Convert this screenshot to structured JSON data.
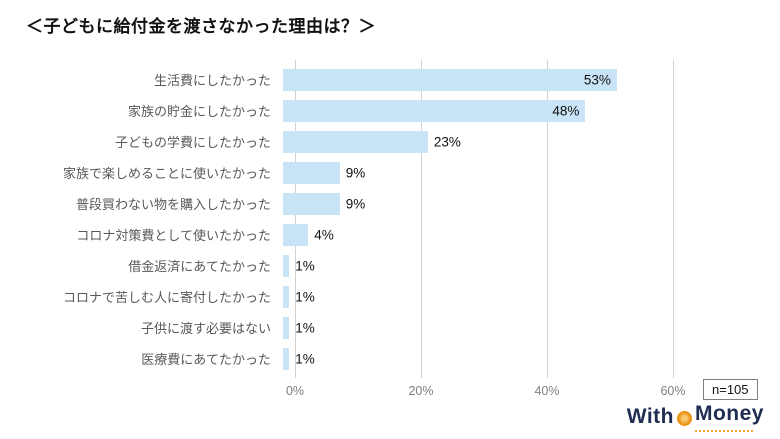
{
  "title": "＜子どもに給付金を渡さなかった理由は？＞",
  "sample_note": "n=105",
  "logo": {
    "word_left": "With",
    "word_right": "Money"
  },
  "chart_data": {
    "type": "bar",
    "orientation": "horizontal",
    "title": "＜子どもに給付金を渡さなかった理由は？＞",
    "categories": [
      "生活費にしたかった",
      "家族の貯金にしたかった",
      "子どもの学費にしたかった",
      "家族で楽しめることに使いたかった",
      "普段買わない物を購入したかった",
      "コロナ対策費として使いたかった",
      "借金返済にあてたかった",
      "コロナで苦しむ人に寄付したかった",
      "子供に渡す必要はない",
      "医療費にあてたかった"
    ],
    "values": [
      53,
      48,
      23,
      9,
      9,
      4,
      1,
      1,
      1,
      1
    ],
    "value_labels": [
      "53%",
      "48%",
      "23%",
      "9%",
      "9%",
      "4%",
      "1%",
      "1%",
      "1%",
      "1%"
    ],
    "xlabel": "",
    "ylabel": "",
    "xlim": [
      0,
      60
    ],
    "ticks": [
      {
        "value": 0,
        "label": "0%"
      },
      {
        "value": 20,
        "label": "20%"
      },
      {
        "value": 40,
        "label": "40%"
      },
      {
        "value": 60,
        "label": "60%"
      }
    ],
    "grid": true,
    "legend": "none",
    "bar_color": "#c9e4f6",
    "gridline_color": "#d2d2d2",
    "sample_size": "n=105"
  }
}
